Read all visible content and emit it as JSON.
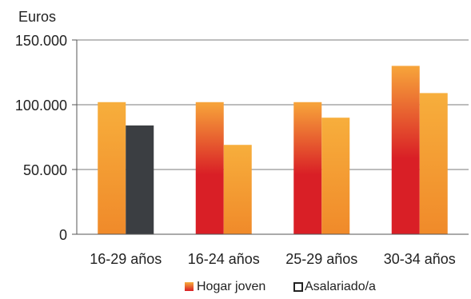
{
  "chart_data": {
    "type": "bar",
    "unit_label": "Euros",
    "categories": [
      "16-29 años",
      "16-24 años",
      "25-29 años",
      "30-34 años"
    ],
    "series_labels": [
      "Hogar joven",
      "Asalariado/a"
    ],
    "bar_groups": [
      {
        "category": "16-29 años",
        "values": [
          102000,
          84000
        ]
      },
      {
        "category": "16-24 años",
        "values": [
          102000,
          69000
        ]
      },
      {
        "category": "25-29 años",
        "values": [
          102000,
          90000
        ]
      },
      {
        "category": "30-34 años",
        "values": [
          130000,
          109000
        ]
      }
    ],
    "ylim": [
      0,
      150000
    ],
    "yticks": [
      0,
      50000,
      100000,
      150000
    ],
    "ytick_labels": [
      "0",
      "50.000",
      "100.000",
      "150.000"
    ],
    "grid": true,
    "legend_position": "bottom",
    "colors": {
      "orange": "#f08a2a",
      "red": "#d91f26",
      "light_orange": "#f7a53a",
      "dark_gray": "#3b3e42",
      "grid": "#bdbdbd",
      "axis": "#555555"
    }
  }
}
